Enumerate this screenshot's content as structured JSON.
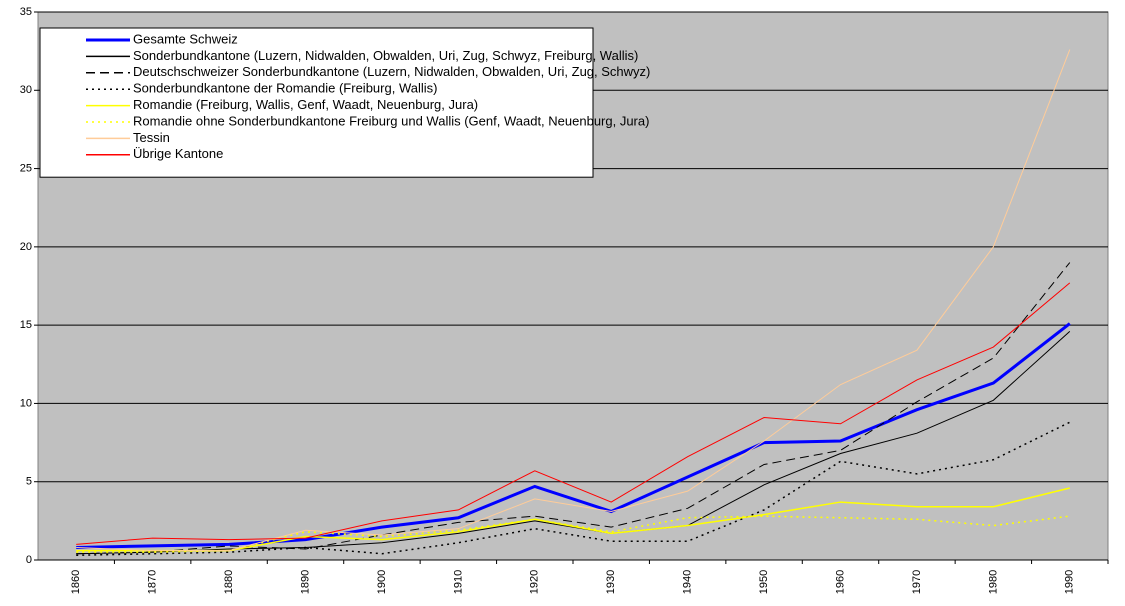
{
  "chart_data": {
    "type": "line",
    "categories": [
      "1860",
      "1870",
      "1880",
      "1890",
      "1900",
      "1910",
      "1920",
      "1930",
      "1940",
      "1950",
      "1960",
      "1970",
      "1980",
      "1990"
    ],
    "series": [
      {
        "name": "Gesamte Schweiz",
        "color": "#0000ff",
        "width": 3,
        "dash": "solid",
        "values": [
          0.8,
          0.9,
          1.0,
          1.3,
          2.1,
          2.7,
          4.7,
          3.1,
          5.3,
          7.5,
          7.6,
          9.6,
          11.3,
          15.1
        ]
      },
      {
        "name": "Sonderbundkantone (Luzern, Nidwalden, Obwalden, Uri, Zug, Schwyz, Freiburg, Wallis)",
        "color": "#000000",
        "width": 1,
        "dash": "solid",
        "values": [
          0.4,
          0.5,
          0.7,
          0.8,
          1.1,
          1.7,
          2.5,
          1.7,
          2.2,
          4.8,
          6.8,
          8.1,
          10.2,
          14.6
        ]
      },
      {
        "name": "Deutschschweizer Sonderbundkantone (Luzern, Nidwalden, Obwalden, Uri, Zug, Schwyz)",
        "color": "#000000",
        "width": 1,
        "dash": "dashed",
        "values": [
          0.4,
          0.5,
          0.9,
          0.7,
          1.6,
          2.4,
          2.8,
          2.1,
          3.3,
          6.1,
          7.0,
          10.1,
          12.9,
          19.0
        ]
      },
      {
        "name": "Sonderbundkantone der Romandie (Freiburg, Wallis)",
        "color": "#000000",
        "width": 1.5,
        "dash": "dotted",
        "values": [
          0.3,
          0.4,
          0.5,
          0.8,
          0.4,
          1.1,
          2.0,
          1.2,
          1.2,
          3.2,
          6.3,
          5.5,
          6.4,
          8.8
        ]
      },
      {
        "name": "Romandie (Freiburg, Wallis, Genf, Waadt, Neuenburg, Jura)",
        "color": "#ffff00",
        "width": 1.5,
        "dash": "solid",
        "values": [
          0.6,
          0.6,
          0.6,
          1.5,
          1.3,
          1.8,
          2.6,
          1.7,
          2.2,
          2.9,
          3.7,
          3.4,
          3.4,
          4.6
        ]
      },
      {
        "name": "Romandie ohne Sonderbundkantone Freiburg und Wallis (Genf, Waadt, Neuenburg, Jura)",
        "color": "#ffff00",
        "width": 1.5,
        "dash": "dotted",
        "values": [
          0.5,
          0.5,
          0.6,
          1.8,
          1.5,
          1.9,
          2.6,
          1.8,
          2.7,
          2.8,
          2.7,
          2.6,
          2.2,
          2.8
        ]
      },
      {
        "name": "Tessin",
        "color": "#ffcc99",
        "width": 1,
        "dash": "solid",
        "values": [
          0.8,
          0.6,
          0.6,
          1.9,
          1.6,
          2.0,
          3.9,
          3.1,
          4.4,
          7.6,
          11.2,
          13.4,
          20.0,
          32.6
        ]
      },
      {
        "name": "Übrige Kantone",
        "color": "#ff0000",
        "width": 1,
        "dash": "solid",
        "values": [
          1.0,
          1.4,
          1.3,
          1.4,
          2.5,
          3.2,
          5.7,
          3.7,
          6.6,
          9.1,
          8.7,
          11.5,
          13.6,
          17.7
        ]
      }
    ],
    "ylim": [
      0,
      35
    ],
    "yticks": [
      0,
      5,
      10,
      15,
      20,
      25,
      30,
      35
    ],
    "grid": true,
    "legend": "top-left"
  }
}
